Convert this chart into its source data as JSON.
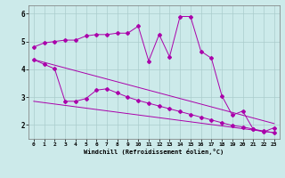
{
  "xlabel": "Windchill (Refroidissement éolien,°C)",
  "background_color": "#cceaea",
  "line_color": "#aa00aa",
  "grid_color": "#aacccc",
  "xlim": [
    -0.5,
    23.5
  ],
  "ylim": [
    1.5,
    6.3
  ],
  "yticks": [
    2,
    3,
    4,
    5,
    6
  ],
  "xticks": [
    0,
    1,
    2,
    3,
    4,
    5,
    6,
    7,
    8,
    9,
    10,
    11,
    12,
    13,
    14,
    15,
    16,
    17,
    18,
    19,
    20,
    21,
    22,
    23
  ],
  "line1_x": [
    0,
    1,
    2,
    3,
    4,
    5,
    6,
    7,
    8,
    9,
    10,
    11,
    12,
    13,
    14,
    15,
    16,
    17,
    18,
    19,
    20,
    21,
    22,
    23
  ],
  "line1_y": [
    4.8,
    4.95,
    5.0,
    5.05,
    5.05,
    5.2,
    5.25,
    5.25,
    5.3,
    5.3,
    5.55,
    4.3,
    5.25,
    4.45,
    5.9,
    5.9,
    4.65,
    4.4,
    3.05,
    2.35,
    2.5,
    1.85,
    1.75,
    1.9
  ],
  "line2_x": [
    0,
    1,
    2,
    3,
    4,
    5,
    6,
    7,
    8,
    9,
    10,
    11,
    12,
    13,
    14,
    15,
    16,
    17,
    18,
    19,
    20,
    21,
    22,
    23
  ],
  "line2_y": [
    4.35,
    4.18,
    4.02,
    2.85,
    2.85,
    2.95,
    3.25,
    3.3,
    3.15,
    3.0,
    2.88,
    2.78,
    2.68,
    2.58,
    2.48,
    2.38,
    2.28,
    2.18,
    2.08,
    1.98,
    1.93,
    1.85,
    1.78,
    1.72
  ],
  "line3_x": [
    0,
    23
  ],
  "line3_y": [
    4.35,
    2.05
  ],
  "line4_x": [
    0,
    23
  ],
  "line4_y": [
    2.85,
    1.72
  ]
}
